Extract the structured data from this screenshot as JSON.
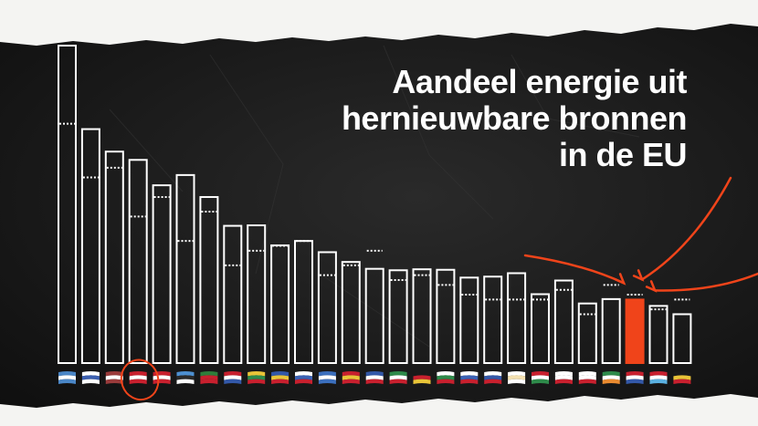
{
  "chart_data": {
    "type": "bar",
    "title_lines": [
      "Aandeel energie uit",
      "hernieuwbare bronnen",
      "in de EU"
    ],
    "ylim": [
      0,
      65
    ],
    "grid": false,
    "legend": "none",
    "categories": [
      "SE",
      "FI",
      "LV",
      "DK",
      "AT",
      "EE",
      "PT",
      "HR",
      "LT",
      "RO",
      "SI",
      "GR",
      "ES",
      "FR",
      "IT",
      "DE",
      "BG",
      "SK",
      "CZ",
      "CY",
      "HU",
      "PL",
      "MT",
      "IE",
      "NL",
      "LU",
      "BE"
    ],
    "series": [
      {
        "values": [
          66.0,
          47.9,
          43.3,
          41.6,
          36.4,
          38.5,
          34.0,
          28.1,
          28.2,
          24.1,
          25.0,
          22.7,
          20.7,
          19.3,
          19.0,
          19.2,
          19.1,
          17.5,
          17.7,
          18.4,
          14.1,
          16.9,
          12.2,
          13.1,
          13.0,
          11.7,
          10.0
        ]
      },
      {
        "values": [
          49.0,
          38.0,
          40.0,
          30.0,
          34.0,
          25.0,
          31.0,
          20.0,
          23.0,
          24.0,
          25.0,
          18.0,
          20.0,
          23.0,
          17.0,
          18.0,
          16.0,
          14.0,
          13.0,
          13.0,
          13.0,
          15.0,
          10.0,
          16.0,
          14.0,
          11.0,
          13.0
        ]
      }
    ],
    "highlight": "NL",
    "circled": "DK",
    "colors": {
      "background": "#161616",
      "bar": "#ffffff",
      "highlight": "#f0441a",
      "annotation": "#f0441a",
      "target_line": "#ffffff"
    }
  },
  "flags": [
    [
      "#4a86c6",
      "#ffffff",
      "#4a86c6"
    ],
    [
      "#ffffff",
      "#3b5fb0",
      "#ffffff"
    ],
    [
      "#9a3b3b",
      "#ffffff",
      "#9a3b3b"
    ],
    [
      "#c8202e",
      "#ffffff",
      "#c8202e"
    ],
    [
      "#c8202e",
      "#ffffff",
      "#c8202e"
    ],
    [
      "#4d8fd0",
      "#2a2a2a",
      "#ffffff"
    ],
    [
      "#2e7d3a",
      "#c8202e",
      "#c8202e"
    ],
    [
      "#c8202e",
      "#ffffff",
      "#3358a8"
    ],
    [
      "#e9c438",
      "#2e8a4a",
      "#c8202e"
    ],
    [
      "#3358a8",
      "#e9c438",
      "#c8202e"
    ],
    [
      "#ffffff",
      "#3b62b4",
      "#c8202e"
    ],
    [
      "#3b6fbd",
      "#ffffff",
      "#3b6fbd"
    ],
    [
      "#c8202e",
      "#e9c438",
      "#c8202e"
    ],
    [
      "#3358a8",
      "#ffffff",
      "#c8202e"
    ],
    [
      "#2e8a4a",
      "#ffffff",
      "#c8202e"
    ],
    [
      "#1a1a1a",
      "#c8202e",
      "#e9c438"
    ],
    [
      "#ffffff",
      "#2e8a4a",
      "#c8202e"
    ],
    [
      "#ffffff",
      "#3b62b4",
      "#c8202e"
    ],
    [
      "#ffffff",
      "#3358a8",
      "#c8202e"
    ],
    [
      "#ffffff",
      "#f3e0b0",
      "#ffffff"
    ],
    [
      "#c8202e",
      "#ffffff",
      "#2e8a4a"
    ],
    [
      "#ffffff",
      "#ffffff",
      "#c8202e"
    ],
    [
      "#ffffff",
      "#ffffff",
      "#c8202e"
    ],
    [
      "#2e8a4a",
      "#ffffff",
      "#e98a30"
    ],
    [
      "#c8202e",
      "#ffffff",
      "#3358a8"
    ],
    [
      "#c8202e",
      "#ffffff",
      "#5ab0e0"
    ],
    [
      "#1a1a1a",
      "#e9c438",
      "#c8202e"
    ]
  ]
}
